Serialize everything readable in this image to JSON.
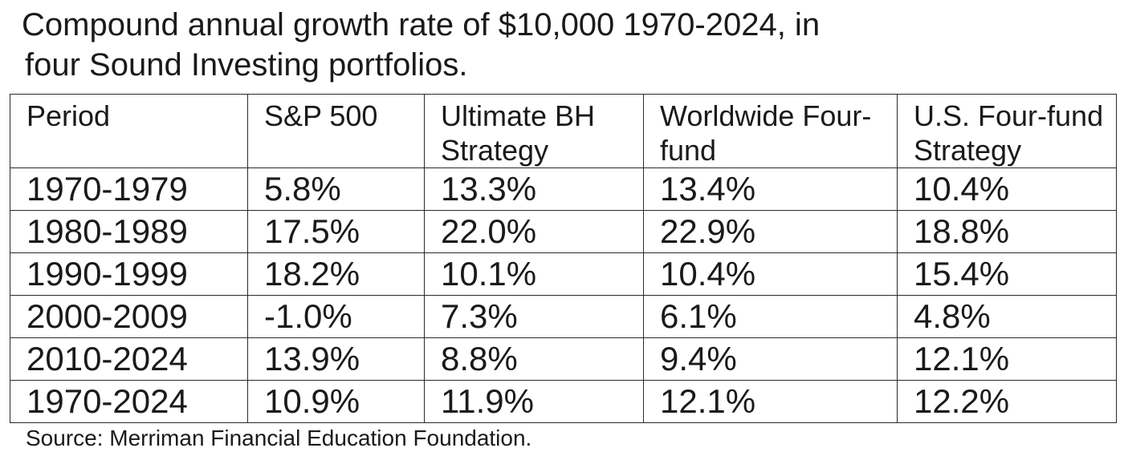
{
  "title": {
    "line1": "Compound annual growth rate of $10,000 1970-2024, in",
    "line2": "four Sound Investing portfolios."
  },
  "table": {
    "headers": [
      "Period",
      "S&P 500",
      "Ultimate BH Strategy",
      "Worldwide Four-fund",
      "U.S. Four-fund Strategy"
    ],
    "rows": [
      [
        "1970-1979",
        "5.8%",
        "13.3%",
        "13.4%",
        "10.4%"
      ],
      [
        "1980-1989",
        "17.5%",
        "22.0%",
        "22.9%",
        "18.8%"
      ],
      [
        "1990-1999",
        "18.2%",
        "10.1%",
        "10.4%",
        "15.4%"
      ],
      [
        "2000-2009",
        "-1.0%",
        "7.3%",
        "6.1%",
        "4.8%"
      ],
      [
        "2010-2024",
        "13.9%",
        "8.8%",
        "9.4%",
        "12.1%"
      ],
      [
        "1970-2024",
        "10.9%",
        "11.9%",
        "12.1%",
        "12.2%"
      ]
    ]
  },
  "source": "Source: Merriman Financial Education Foundation."
}
